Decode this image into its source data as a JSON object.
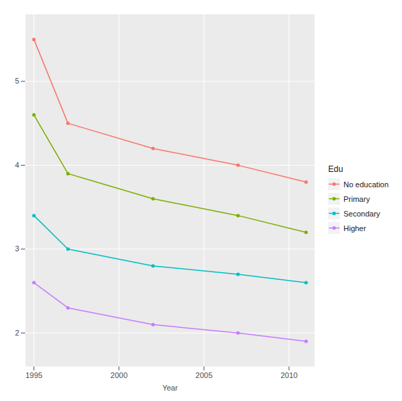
{
  "chart_data": {
    "type": "line",
    "x_label": "Year",
    "legend_title": "Edu",
    "x": [
      1995,
      1997,
      2002,
      2007,
      2011
    ],
    "series": [
      {
        "name": "No education",
        "color": "#F8766D",
        "values": [
          5.5,
          4.5,
          4.2,
          4.0,
          3.8
        ]
      },
      {
        "name": "Primary",
        "color": "#7CAE00",
        "values": [
          4.6,
          3.9,
          3.6,
          3.4,
          3.2
        ]
      },
      {
        "name": "Secondary",
        "color": "#00BFC4",
        "values": [
          3.4,
          3.0,
          2.8,
          2.7,
          2.6
        ]
      },
      {
        "name": "Higher",
        "color": "#C77CFF",
        "values": [
          2.6,
          2.3,
          2.1,
          2.0,
          1.9
        ]
      }
    ],
    "xlim": [
      1994.5,
      2011.5
    ],
    "xticks": [
      1995,
      2000,
      2005,
      2010
    ],
    "ylim": [
      1.6,
      5.8
    ],
    "yticks": [
      2,
      3,
      4,
      5
    ],
    "grid": true,
    "legend": "right",
    "marker": "circle"
  }
}
